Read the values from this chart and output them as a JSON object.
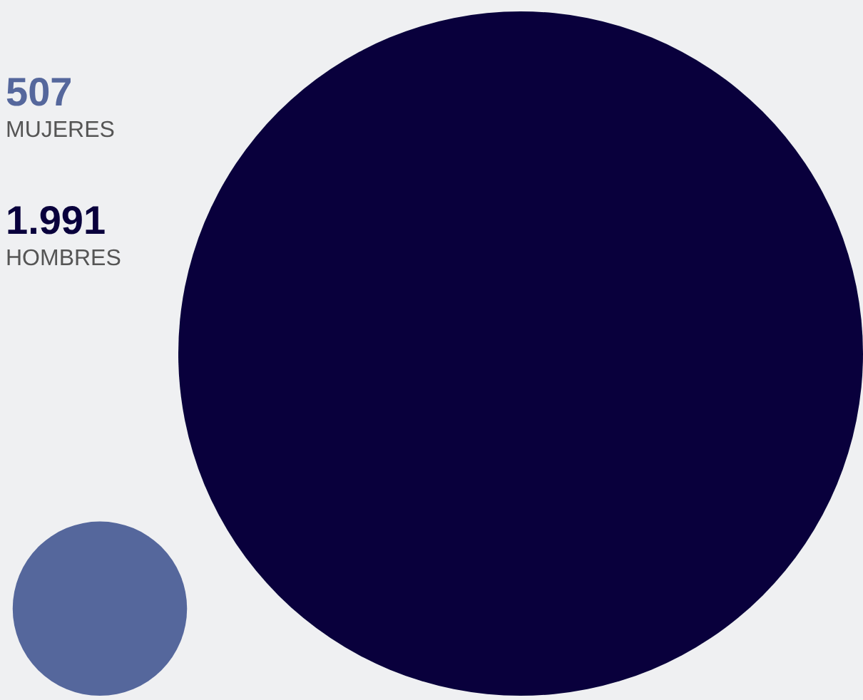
{
  "chart_data": {
    "type": "other",
    "categories": [
      "MUJERES",
      "HOMBRES"
    ],
    "values": [
      507,
      1991
    ],
    "value_labels": [
      "507",
      "1.991"
    ],
    "colors": [
      "#55679c",
      "#09003c"
    ]
  }
}
